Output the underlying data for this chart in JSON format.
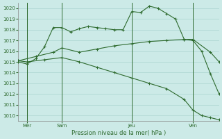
{
  "bg_color": "#cceae7",
  "grid_color": "#aad4d0",
  "line_color": "#2d6a2d",
  "ylim": [
    1009.5,
    1020.5
  ],
  "xlabel": "Pression niveau de la mer( hPa )",
  "day_labels": [
    "Mer",
    "Sam",
    "Jeu",
    "Ven"
  ],
  "day_positions": [
    1,
    5,
    13,
    20
  ],
  "vline_positions": [
    1,
    5,
    13,
    20
  ],
  "line1_x": [
    0,
    1,
    2,
    3,
    4,
    5,
    6,
    7,
    8,
    9,
    10,
    11,
    12,
    13,
    14,
    15,
    16,
    17,
    18,
    19,
    20,
    21,
    22,
    23
  ],
  "line1_y": [
    1015.0,
    1014.8,
    1015.3,
    1016.4,
    1018.2,
    1018.2,
    1017.8,
    1018.1,
    1018.3,
    1018.2,
    1018.1,
    1018.0,
    1018.0,
    1019.7,
    1019.6,
    1020.2,
    1020.0,
    1019.5,
    1019.0,
    1017.1,
    1017.0,
    1016.0,
    1013.9,
    1012.0
  ],
  "line2_x": [
    0,
    2,
    4,
    5,
    7,
    9,
    11,
    13,
    15,
    17,
    19,
    20,
    22,
    23
  ],
  "line2_y": [
    1015.1,
    1015.5,
    1015.9,
    1016.3,
    1015.9,
    1016.2,
    1016.5,
    1016.7,
    1016.9,
    1017.0,
    1017.1,
    1017.1,
    1015.9,
    1015.0
  ],
  "line3_x": [
    0,
    1,
    3,
    5,
    7,
    9,
    11,
    13,
    15,
    17,
    19,
    20,
    21,
    22,
    23
  ],
  "line3_y": [
    1015.1,
    1015.0,
    1015.2,
    1015.4,
    1015.0,
    1014.5,
    1014.0,
    1013.5,
    1013.0,
    1012.5,
    1011.5,
    1010.5,
    1010.0,
    1009.8,
    1009.6
  ]
}
